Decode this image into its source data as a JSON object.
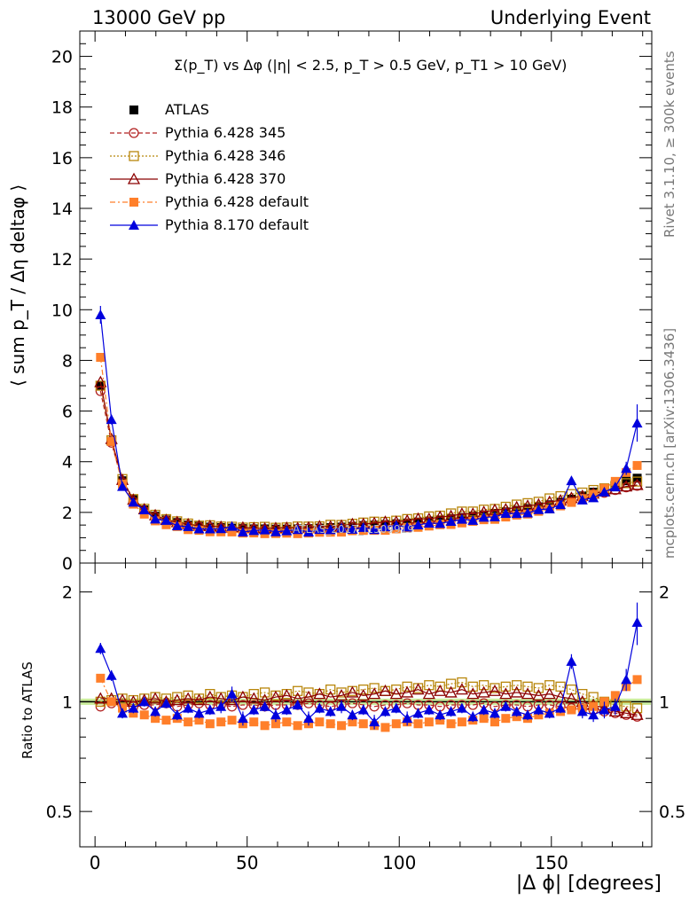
{
  "header": {
    "left": "13000 GeV pp",
    "right": "Underlying Event"
  },
  "side_text": {
    "rivet": "Rivet 3.1.10, ≥ 300k events",
    "mcplots": "mcplots.cern.ch [arXiv:1306.3436]"
  },
  "watermark": "ATLAS_2017_I1509919",
  "colors": {
    "atlas": "#000000",
    "p345": "#b22222",
    "p346": "#b8860b",
    "p370": "#8b0000",
    "p6def": "#ff7f2a",
    "p8def": "#0000dd",
    "band": "#a6e05a"
  },
  "chart_data": [
    {
      "type": "scatter",
      "panel": "main",
      "title": "Σ(p_T) vs Δφ (|η| < 2.5, p_T > 0.5 GeV, p_T1 > 10 GeV)",
      "ylabel": "⟨ sum p_T / Δη deltaφ ⟩",
      "xlabel": "",
      "xlim": [
        -5,
        183
      ],
      "ylim": [
        0,
        21
      ],
      "yticks": [
        0,
        2,
        4,
        6,
        8,
        10,
        12,
        14,
        16,
        18,
        20
      ],
      "legend_position": "top-left",
      "series": [
        {
          "name": "ATLAS",
          "marker": "square-filled",
          "key": "atlas",
          "x": [
            1.8,
            5.4,
            9,
            12.6,
            16.2,
            19.8,
            23.4,
            27,
            30.6,
            34.2,
            37.8,
            41.4,
            45,
            48.6,
            52.2,
            55.8,
            59.4,
            63,
            66.6,
            70.2,
            73.8,
            77.4,
            81,
            84.6,
            88.2,
            91.8,
            95.4,
            99,
            102.6,
            106.2,
            109.8,
            113.4,
            117,
            120.6,
            124.2,
            127.8,
            131.4,
            135,
            138.6,
            142.2,
            145.8,
            149.4,
            153,
            156.6,
            160.2,
            163.8,
            167.4,
            171,
            174.6,
            178.2
          ],
          "y": [
            7.0,
            4.8,
            3.25,
            2.5,
            2.1,
            1.85,
            1.7,
            1.6,
            1.5,
            1.45,
            1.42,
            1.4,
            1.38,
            1.36,
            1.35,
            1.35,
            1.34,
            1.34,
            1.35,
            1.36,
            1.38,
            1.4,
            1.42,
            1.45,
            1.48,
            1.5,
            1.52,
            1.55,
            1.58,
            1.62,
            1.66,
            1.7,
            1.75,
            1.8,
            1.85,
            1.9,
            1.96,
            2.02,
            2.08,
            2.15,
            2.22,
            2.3,
            2.4,
            2.52,
            2.65,
            2.8,
            2.95,
            3.1,
            3.25,
            3.35
          ]
        },
        {
          "name": "Pythia 6.428 345",
          "marker": "circle-open",
          "line": "dashed",
          "key": "p345",
          "ratio": [
            0.97,
            0.99,
            0.98,
            0.97,
            0.98,
            0.98,
            0.99,
            0.97,
            0.98,
            0.99,
            0.98,
            0.98,
            0.97,
            0.98,
            0.98,
            0.97,
            0.98,
            0.98,
            0.98,
            0.99,
            0.98,
            0.97,
            0.98,
            0.99,
            0.98,
            0.97,
            0.98,
            0.98,
            0.99,
            0.98,
            0.98,
            0.97,
            0.98,
            0.98,
            0.98,
            0.99,
            0.97,
            0.98,
            0.98,
            0.97,
            0.98,
            0.98,
            0.97,
            0.96,
            0.96,
            0.95,
            0.94,
            0.93,
            0.92,
            0.91
          ]
        },
        {
          "name": "Pythia 6.428 346",
          "marker": "square-open",
          "line": "dotted",
          "key": "p346",
          "ratio": [
            1.0,
            1.01,
            1.02,
            1.01,
            1.02,
            1.03,
            1.02,
            1.03,
            1.04,
            1.02,
            1.05,
            1.03,
            1.04,
            1.03,
            1.05,
            1.06,
            1.04,
            1.05,
            1.07,
            1.06,
            1.05,
            1.08,
            1.06,
            1.07,
            1.08,
            1.09,
            1.07,
            1.08,
            1.1,
            1.09,
            1.11,
            1.1,
            1.12,
            1.13,
            1.1,
            1.11,
            1.09,
            1.1,
            1.11,
            1.1,
            1.09,
            1.11,
            1.1,
            1.08,
            1.05,
            1.03,
            1.0,
            0.98,
            0.97,
            0.96
          ]
        },
        {
          "name": "Pythia 6.428 370",
          "marker": "triangle-open",
          "line": "solid",
          "key": "p370",
          "ratio": [
            1.02,
            1.02,
            1.01,
            1.0,
            1.01,
            1.02,
            1.0,
            1.01,
            1.02,
            1.01,
            1.03,
            1.02,
            1.01,
            1.03,
            1.02,
            1.01,
            1.03,
            1.04,
            1.02,
            1.03,
            1.05,
            1.03,
            1.04,
            1.06,
            1.04,
            1.05,
            1.07,
            1.05,
            1.06,
            1.08,
            1.05,
            1.07,
            1.06,
            1.08,
            1.05,
            1.06,
            1.07,
            1.05,
            1.06,
            1.05,
            1.04,
            1.05,
            1.03,
            1.02,
            1.0,
            0.98,
            0.96,
            0.94,
            0.93,
            0.92
          ]
        },
        {
          "name": "Pythia 6.428 default",
          "marker": "square-filled",
          "line": "dashdot",
          "key": "p6def",
          "ratio": [
            1.16,
            1.0,
            0.96,
            0.93,
            0.92,
            0.9,
            0.89,
            0.9,
            0.88,
            0.89,
            0.87,
            0.88,
            0.89,
            0.87,
            0.88,
            0.86,
            0.87,
            0.88,
            0.86,
            0.87,
            0.88,
            0.87,
            0.86,
            0.88,
            0.87,
            0.86,
            0.85,
            0.87,
            0.88,
            0.87,
            0.88,
            0.89,
            0.87,
            0.88,
            0.89,
            0.9,
            0.88,
            0.9,
            0.91,
            0.9,
            0.92,
            0.93,
            0.94,
            0.95,
            0.96,
            0.97,
            1.0,
            1.04,
            1.1,
            1.15
          ]
        },
        {
          "name": "Pythia 8.170 default",
          "marker": "triangle-filled",
          "line": "solid",
          "key": "p8def",
          "ratio": [
            1.4,
            1.18,
            0.93,
            0.96,
            1.0,
            0.94,
            0.99,
            0.92,
            0.96,
            0.93,
            0.95,
            0.97,
            1.05,
            0.9,
            0.95,
            0.97,
            0.92,
            0.95,
            0.98,
            0.9,
            0.96,
            0.94,
            0.97,
            0.92,
            0.95,
            0.88,
            0.94,
            0.96,
            0.9,
            0.93,
            0.95,
            0.92,
            0.94,
            0.96,
            0.91,
            0.95,
            0.93,
            0.97,
            0.94,
            0.92,
            0.95,
            0.93,
            0.96,
            1.29,
            0.94,
            0.92,
            0.95,
            0.97,
            1.15,
            1.65
          ],
          "ratio_err": [
            0.05,
            0.04,
            0.03,
            0.03,
            0.03,
            0.03,
            0.03,
            0.03,
            0.03,
            0.03,
            0.03,
            0.04,
            0.05,
            0.04,
            0.03,
            0.03,
            0.04,
            0.03,
            0.03,
            0.04,
            0.03,
            0.03,
            0.04,
            0.03,
            0.03,
            0.04,
            0.03,
            0.03,
            0.04,
            0.03,
            0.03,
            0.03,
            0.03,
            0.03,
            0.03,
            0.03,
            0.03,
            0.03,
            0.03,
            0.03,
            0.03,
            0.03,
            0.03,
            0.06,
            0.04,
            0.04,
            0.05,
            0.05,
            0.08,
            0.22
          ]
        }
      ]
    },
    {
      "type": "scatter",
      "panel": "ratio",
      "ylabel": "Ratio to ATLAS",
      "xlabel": "|Δ ϕ| [degrees]",
      "xlim": [
        -5,
        183
      ],
      "ylim": [
        0.4,
        2.4
      ],
      "ylog": true,
      "yticks": [
        0.5,
        1,
        2
      ],
      "xticks": [
        0,
        50,
        100,
        150
      ],
      "reference": 1
    }
  ],
  "legend": [
    {
      "label": "ATLAS",
      "key": "atlas"
    },
    {
      "label": "Pythia 6.428 345",
      "key": "p345"
    },
    {
      "label": "Pythia 6.428 346",
      "key": "p346"
    },
    {
      "label": "Pythia 6.428 370",
      "key": "p370"
    },
    {
      "label": "Pythia 6.428 default",
      "key": "p6def"
    },
    {
      "label": "Pythia 8.170 default",
      "key": "p8def"
    }
  ]
}
